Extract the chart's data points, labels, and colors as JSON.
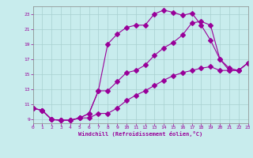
{
  "xlabel": "Windchill (Refroidissement éolien,°C)",
  "bg_color": "#c8eced",
  "grid_color": "#a8d0d0",
  "line_color": "#990099",
  "xmin": 0,
  "xmax": 23,
  "ymin": 8.5,
  "ymax": 24.0,
  "yticks": [
    9,
    11,
    13,
    15,
    17,
    19,
    21,
    23
  ],
  "xticks": [
    0,
    1,
    2,
    3,
    4,
    5,
    6,
    7,
    8,
    9,
    10,
    11,
    12,
    13,
    14,
    15,
    16,
    17,
    18,
    19,
    20,
    21,
    22,
    23
  ],
  "line1_x": [
    0,
    1,
    2,
    3,
    4,
    5,
    6,
    7,
    8,
    9,
    10,
    11,
    12,
    13,
    14,
    15,
    16,
    17,
    18,
    19,
    20,
    21,
    22,
    23
  ],
  "line1_y": [
    10.5,
    10.2,
    9.0,
    8.9,
    8.9,
    9.2,
    9.8,
    12.8,
    19.0,
    20.3,
    21.2,
    21.5,
    21.5,
    23.0,
    23.5,
    23.2,
    22.8,
    23.1,
    21.5,
    19.5,
    17.0,
    15.5,
    15.5,
    16.5
  ],
  "line2_x": [
    0,
    1,
    2,
    3,
    4,
    5,
    6,
    7,
    8,
    9,
    10,
    11,
    12,
    13,
    14,
    15,
    16,
    17,
    18,
    19,
    20,
    21,
    22,
    23
  ],
  "line2_y": [
    10.5,
    10.2,
    9.0,
    8.9,
    8.9,
    9.2,
    9.8,
    12.8,
    12.8,
    14.0,
    15.2,
    15.5,
    16.2,
    17.5,
    18.5,
    19.2,
    20.2,
    21.8,
    22.0,
    21.5,
    17.0,
    15.8,
    15.5,
    16.5
  ],
  "line3_x": [
    0,
    1,
    2,
    3,
    4,
    5,
    6,
    7,
    8,
    9,
    10,
    11,
    12,
    13,
    14,
    15,
    16,
    17,
    18,
    19,
    20,
    21,
    22,
    23
  ],
  "line3_y": [
    10.5,
    10.2,
    9.0,
    8.9,
    8.9,
    9.2,
    9.2,
    9.8,
    9.8,
    10.5,
    11.5,
    12.2,
    12.8,
    13.5,
    14.2,
    14.8,
    15.2,
    15.5,
    15.8,
    16.0,
    15.5,
    15.5,
    15.5,
    16.5
  ]
}
